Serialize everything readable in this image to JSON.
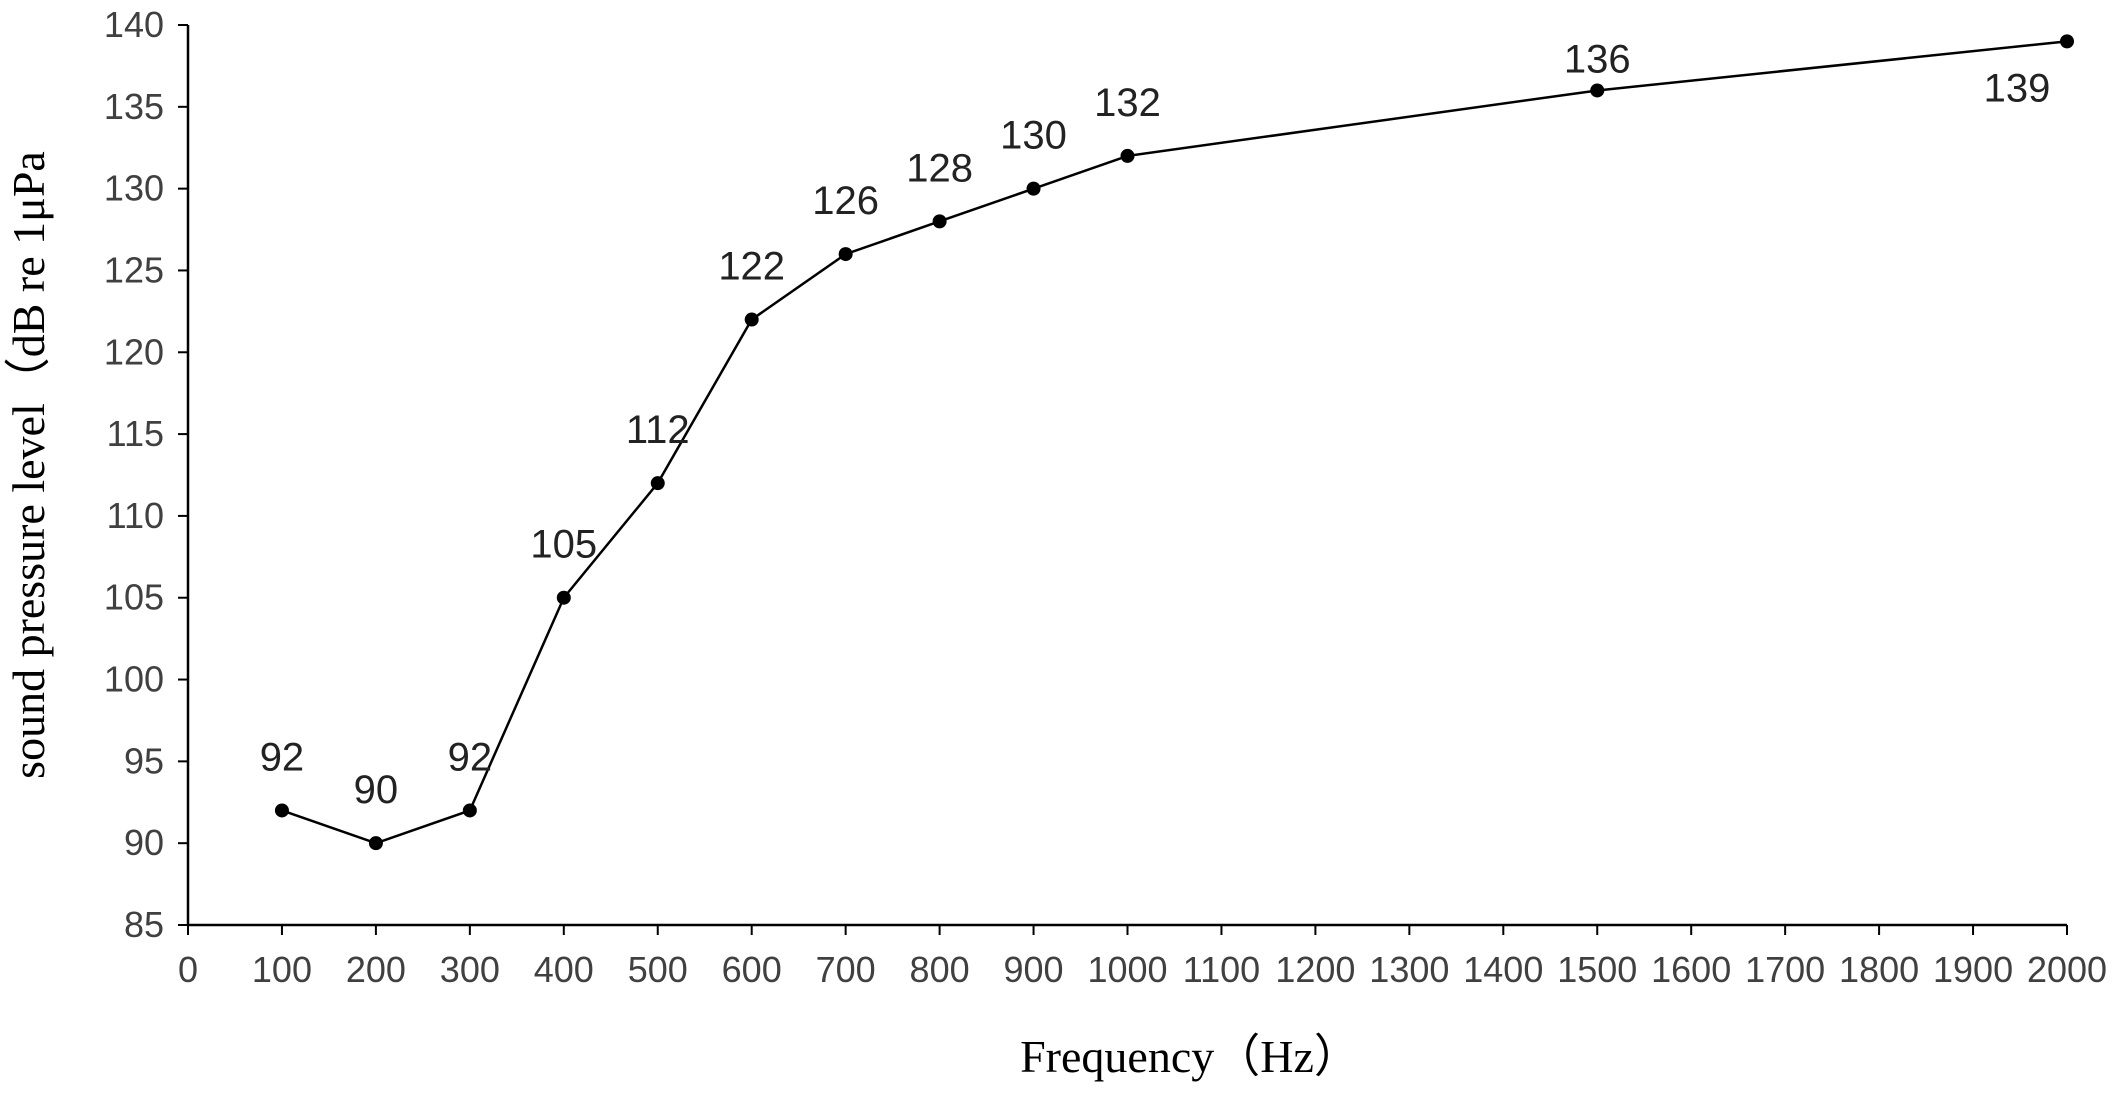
{
  "chart_data": {
    "type": "line",
    "xlabel": "Frequency（Hz）",
    "ylabel": "sound pressure level（dB re 1μPa",
    "xlim": [
      0,
      2000
    ],
    "ylim": [
      85,
      140
    ],
    "x_ticks": [
      0,
      100,
      200,
      300,
      400,
      500,
      600,
      700,
      800,
      900,
      1000,
      1100,
      1200,
      1300,
      1400,
      1500,
      1600,
      1700,
      1800,
      1900,
      2000
    ],
    "y_ticks": [
      85,
      90,
      95,
      100,
      105,
      110,
      115,
      120,
      125,
      130,
      135,
      140
    ],
    "grid": false,
    "legend": "none",
    "series": [
      {
        "x": [
          100,
          200,
          300,
          400,
          500,
          600,
          700,
          800,
          900,
          1000,
          1500,
          2000
        ],
        "values": [
          92,
          90,
          92,
          105,
          112,
          122,
          126,
          128,
          130,
          132,
          136,
          139
        ],
        "data_labels": [
          "92",
          "90",
          "92",
          "105",
          "112",
          "122",
          "126",
          "128",
          "130",
          "132",
          "136",
          "139"
        ],
        "color": "#000000",
        "marker": "circle"
      }
    ]
  }
}
